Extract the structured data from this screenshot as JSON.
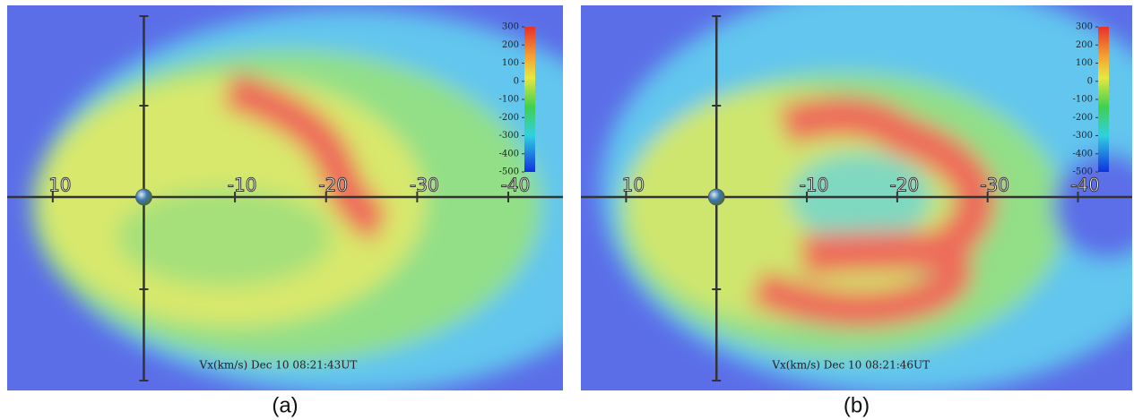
{
  "panels": [
    {
      "label": "(a)",
      "annotation": "Vx(km/s) Dec 10 08:21:43UT",
      "x_axis": {
        "xlim": [
          15,
          -46
        ],
        "ticks": [
          10,
          -10,
          -20,
          -30,
          -40
        ]
      },
      "colorbar": {
        "ticks": [
          300,
          200,
          100,
          0,
          -100,
          -200,
          -300,
          -400,
          -500
        ]
      }
    },
    {
      "label": "(b)",
      "annotation": "Vx(km/s) Dec 10 08:21:46UT",
      "x_axis": {
        "xlim": [
          15,
          -46
        ],
        "ticks": [
          10,
          -10,
          -20,
          -30,
          -40
        ]
      },
      "colorbar": {
        "ticks": [
          300,
          200,
          100,
          0,
          -100,
          -200,
          -300,
          -400,
          -500
        ]
      }
    }
  ]
}
